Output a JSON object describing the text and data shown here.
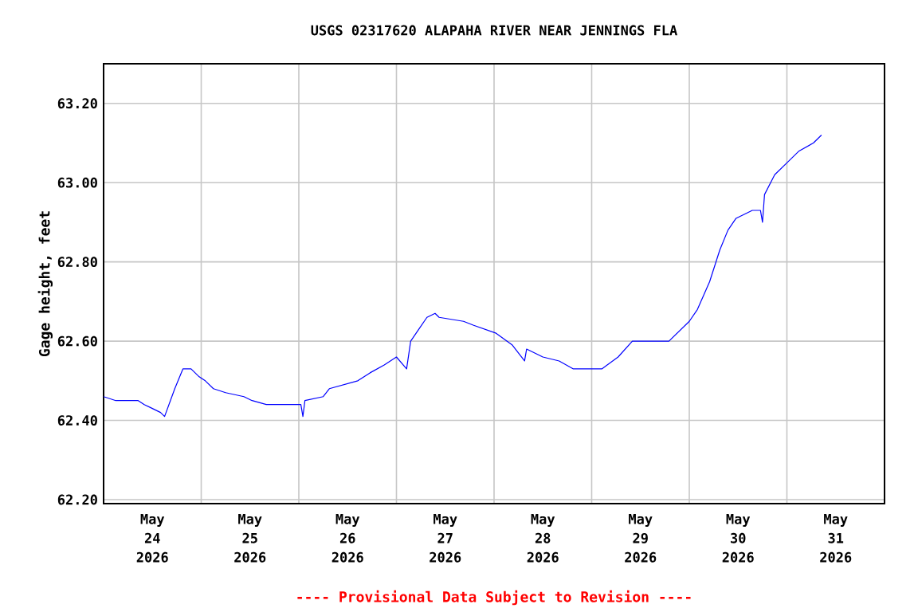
{
  "chart_data": {
    "type": "line",
    "title": "USGS 02317620 ALAPAHA RIVER NEAR JENNINGS FLA",
    "ylabel": "Gage height, feet",
    "annotations": [
      "---- Provisional Data Subject to Revision ----"
    ],
    "x": [
      "2026-05-24T00:00",
      "2026-05-24T03:00",
      "2026-05-24T08:30",
      "2026-05-24T10:00",
      "2026-05-24T12:00",
      "2026-05-24T14:00",
      "2026-05-24T15:00",
      "2026-05-24T17:30",
      "2026-05-24T19:30",
      "2026-05-24T21:30",
      "2026-05-24T23:30",
      "2026-05-25T01:00",
      "2026-05-25T03:00",
      "2026-05-25T06:00",
      "2026-05-25T10:30",
      "2026-05-25T12:30",
      "2026-05-25T16:00",
      "2026-05-26T00:30",
      "2026-05-26T01:00",
      "2026-05-26T01:30",
      "2026-05-26T06:00",
      "2026-05-26T07:30",
      "2026-05-26T11:00",
      "2026-05-26T14:30",
      "2026-05-26T17:30",
      "2026-05-26T21:00",
      "2026-05-27T00:00",
      "2026-05-27T02:30",
      "2026-05-27T03:30",
      "2026-05-27T05:30",
      "2026-05-27T07:30",
      "2026-05-27T09:30",
      "2026-05-27T10:30",
      "2026-05-27T16:30",
      "2026-05-27T19:00",
      "2026-05-28T00:30",
      "2026-05-28T04:30",
      "2026-05-28T07:30",
      "2026-05-28T08:00",
      "2026-05-28T12:00",
      "2026-05-28T16:00",
      "2026-05-28T19:30",
      "2026-05-28T21:30",
      "2026-05-29T02:30",
      "2026-05-29T06:30",
      "2026-05-29T10:00",
      "2026-05-29T19:00",
      "2026-05-30T00:00",
      "2026-05-30T02:00",
      "2026-05-30T05:00",
      "2026-05-30T07:30",
      "2026-05-30T09:30",
      "2026-05-30T11:30",
      "2026-05-30T15:30",
      "2026-05-30T17:30",
      "2026-05-30T18:00",
      "2026-05-30T18:30",
      "2026-05-30T21:00",
      "2026-05-31T00:00",
      "2026-05-31T03:00",
      "2026-05-31T06:30",
      "2026-05-31T08:30"
    ],
    "series": [
      {
        "color": "#0000ff",
        "values": [
          62.46,
          62.45,
          62.45,
          62.44,
          62.43,
          62.42,
          62.41,
          62.48,
          62.53,
          62.53,
          62.51,
          62.5,
          62.48,
          62.47,
          62.46,
          62.45,
          62.44,
          62.44,
          62.41,
          62.45,
          62.46,
          62.48,
          62.49,
          62.5,
          62.52,
          62.54,
          62.56,
          62.53,
          62.6,
          62.63,
          62.66,
          62.67,
          62.66,
          62.65,
          62.64,
          62.62,
          62.59,
          62.55,
          62.58,
          62.56,
          62.55,
          62.53,
          62.53,
          62.53,
          62.56,
          62.6,
          62.6,
          62.65,
          62.68,
          62.75,
          62.83,
          62.88,
          62.91,
          62.93,
          62.93,
          62.9,
          62.97,
          63.02,
          63.05,
          63.08,
          63.1,
          63.12
        ]
      }
    ],
    "xlim": [
      "2026-05-24T00:00",
      "2026-06-01T00:00"
    ],
    "ylim": [
      62.19,
      63.3
    ],
    "xticks": [
      {
        "value": "2026-05-24T12:00",
        "label": "May 24 2026"
      },
      {
        "value": "2026-05-25T12:00",
        "label": "May 25 2026"
      },
      {
        "value": "2026-05-26T12:00",
        "label": "May 26 2026"
      },
      {
        "value": "2026-05-27T12:00",
        "label": "May 27 2026"
      },
      {
        "value": "2026-05-28T12:00",
        "label": "May 28 2026"
      },
      {
        "value": "2026-05-29T12:00",
        "label": "May 29 2026"
      },
      {
        "value": "2026-05-30T12:00",
        "label": "May 30 2026"
      },
      {
        "value": "2026-05-31T12:00",
        "label": "May 31 2026"
      },
      {
        "value": "2026-05-25T00:00",
        "label": null
      },
      {
        "value": "2026-05-26T00:00",
        "label": null
      },
      {
        "value": "2026-05-27T00:00",
        "label": null
      },
      {
        "value": "2026-05-28T00:00",
        "label": null
      },
      {
        "value": "2026-05-29T00:00",
        "label": null
      },
      {
        "value": "2026-05-30T00:00",
        "label": null
      },
      {
        "value": "2026-05-31T00:00",
        "label": null
      }
    ],
    "yticks": [
      {
        "value": 62.2,
        "label": "62.20"
      },
      {
        "value": 62.4,
        "label": "62.40"
      },
      {
        "value": 62.6,
        "label": "62.60"
      },
      {
        "value": 62.8,
        "label": "62.80"
      },
      {
        "value": 63.0,
        "label": "63.00"
      },
      {
        "value": 63.2,
        "label": "63.20"
      }
    ],
    "grid": true,
    "marker": "none",
    "line_style": "solid"
  }
}
